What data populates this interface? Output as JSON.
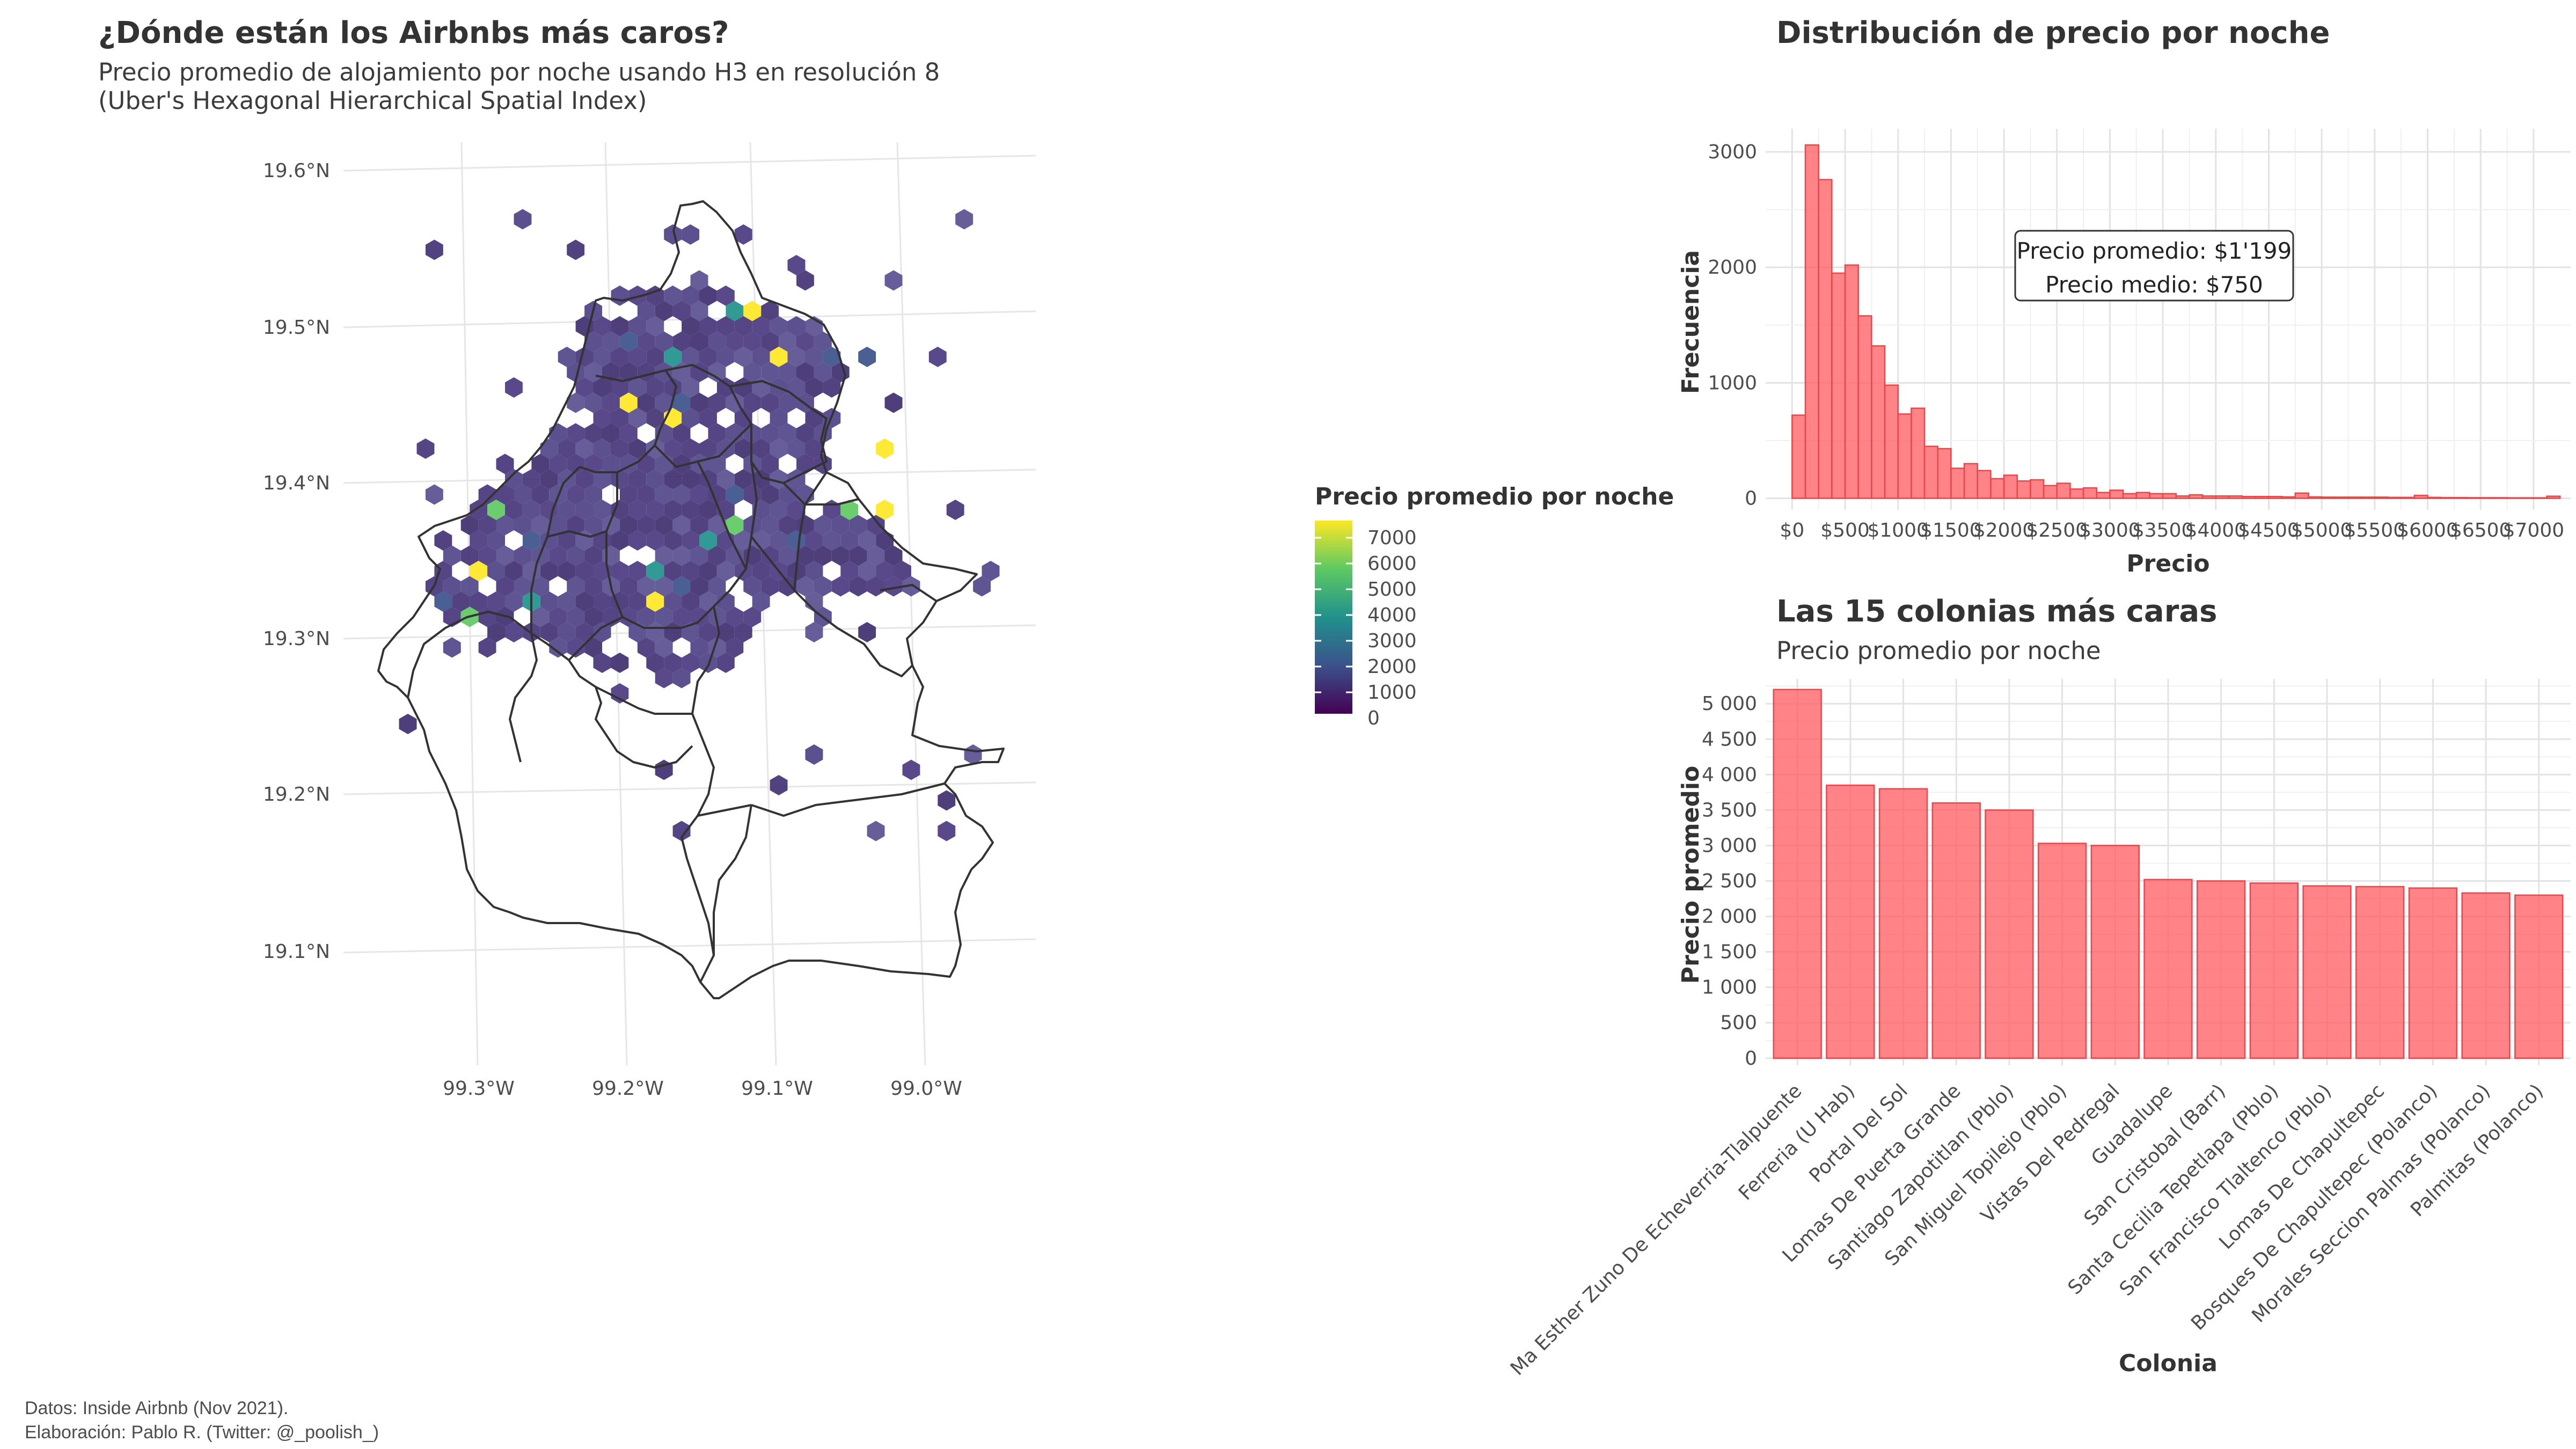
{
  "caption": {
    "line1": "Datos: Inside Airbnb (Nov 2021).",
    "line2": "Elaboración: Pablo R. (Twitter: @_poolish_)"
  },
  "map": {
    "title": "¿Dónde están los Airbnbs más caros?",
    "subtitle_line1": "Precio promedio de alojamiento por noche usando H3 en resolución 8",
    "subtitle_line2": "(Uber's Hexagonal Hierarchical Spatial Index)",
    "lat_ticks": [
      "19.6°N",
      "19.5°N",
      "19.4°N",
      "19.3°N",
      "19.2°N",
      "19.1°N"
    ],
    "lon_ticks": [
      "99.3°W",
      "99.2°W",
      "99.1°W",
      "99.0°W"
    ],
    "colors": {
      "fill_mean": "#47357b",
      "border": "#333333"
    }
  },
  "legend": {
    "title": "Precio promedio por noche",
    "labels": [
      "7000",
      "6000",
      "5000",
      "4000",
      "3000",
      "2000",
      "1000",
      "0"
    ],
    "colors": [
      "#fde725",
      "#5ec962",
      "#21918c",
      "#3b528b",
      "#440154"
    ]
  },
  "chart_data": [
    {
      "type": "bar",
      "title": "Distribución de precio por noche",
      "xlabel": "Precio",
      "ylabel": "Frecuencia",
      "bin_width": 125,
      "bin_start": 0,
      "x_tick_labels": [
        "$0",
        "$500",
        "$1000",
        "$1500",
        "$2000",
        "$2500",
        "$3000",
        "$3500",
        "$4000",
        "$4500",
        "$5000",
        "$5500",
        "$6000",
        "$6500",
        "$7000"
      ],
      "y_ticks": [
        0,
        1000,
        2000,
        3000
      ],
      "xlim": [
        -250,
        7350
      ],
      "ylim": [
        -100,
        3200
      ],
      "values": [
        720,
        3060,
        2760,
        1950,
        2020,
        1580,
        1320,
        980,
        730,
        780,
        450,
        430,
        260,
        300,
        240,
        170,
        200,
        150,
        160,
        110,
        130,
        80,
        90,
        50,
        70,
        40,
        50,
        40,
        40,
        20,
        30,
        20,
        20,
        20,
        15,
        15,
        15,
        12,
        45,
        12,
        10,
        10,
        10,
        10,
        10,
        8,
        8,
        25,
        8,
        6,
        6,
        5,
        5,
        5,
        4,
        4,
        4,
        18
      ],
      "annotation": [
        "Precio promedio: $1'199",
        "Precio medio: $750"
      ],
      "color": "#ff5a5f"
    },
    {
      "type": "bar",
      "title": "Las 15 colonias más caras",
      "subtitle": "Precio promedio por noche",
      "xlabel": "Colonia",
      "ylabel": "Precio promedio",
      "categories": [
        "Ma Esther Zuno De Echeverria-Tlalpuente",
        "Ferreria (U Hab)",
        "Portal Del Sol",
        "Lomas De Puerta Grande",
        "Santiago Zapotitlan (Pblo)",
        "San Miguel Topilejo (Pblo)",
        "Vistas Del Pedregal",
        "Guadalupe",
        "San Cristobal (Barr)",
        "Santa Cecilia Tepetlapa (Pblo)",
        "San Francisco Tlaltenco (Pblo)",
        "Lomas De Chapultepec",
        "Bosques De Chapultepec (Polanco)",
        "Morales Seccion Palmas (Polanco)",
        "Palmitas (Polanco)"
      ],
      "values": [
        5200,
        3850,
        3800,
        3600,
        3500,
        3030,
        3000,
        2520,
        2500,
        2470,
        2430,
        2420,
        2400,
        2330,
        2300
      ],
      "y_ticks": [
        0,
        500,
        1000,
        1500,
        2000,
        2500,
        3000,
        3500,
        4000,
        4500,
        5000
      ],
      "y_tick_labels": [
        "0",
        "500",
        "1 000",
        "1 500",
        "2 000",
        "2 500",
        "3 000",
        "3 500",
        "4 000",
        "4 500",
        "5 000"
      ],
      "ylim": [
        -100,
        5350
      ],
      "color": "#ff5a5f"
    }
  ]
}
